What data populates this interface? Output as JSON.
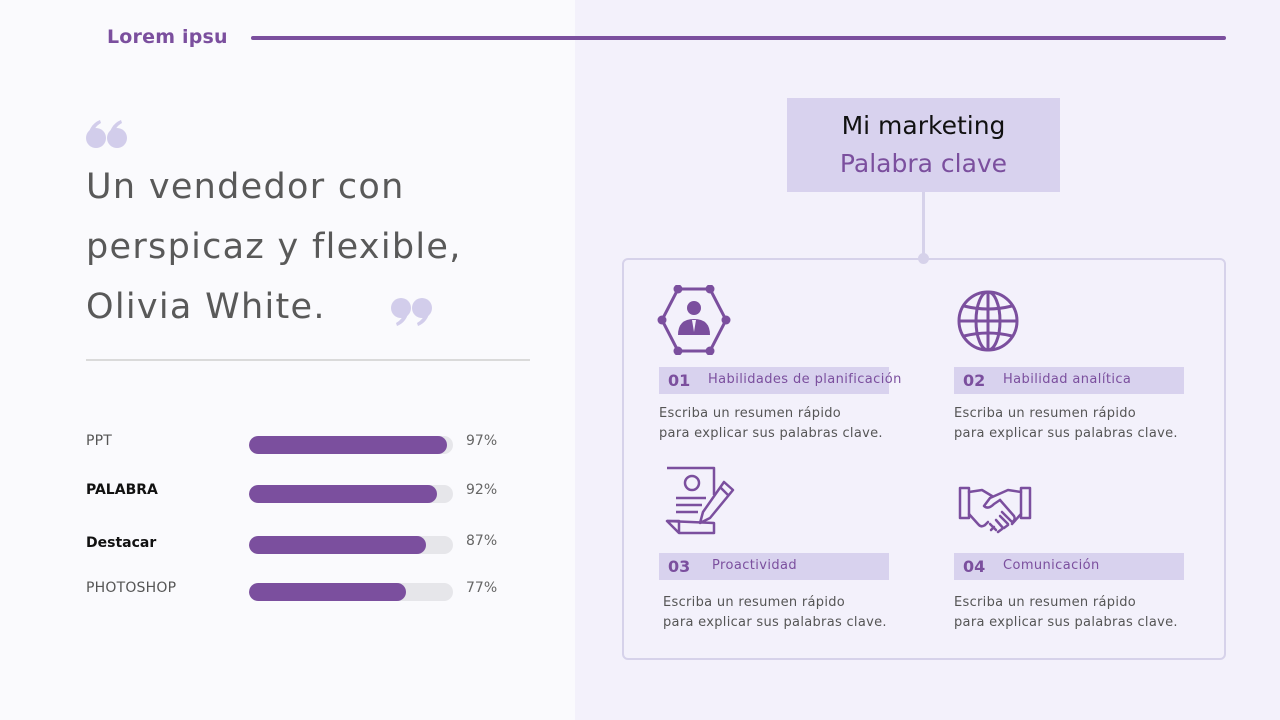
{
  "header": {
    "brand": "Lorem ipsu"
  },
  "quote": {
    "lines": [
      "Un vendedor con",
      "perspicaz y flexible,",
      "Olivia White."
    ]
  },
  "skills": [
    {
      "label": "PPT",
      "value": 97,
      "pct_text": "97%"
    },
    {
      "label": "PALABRA",
      "value": 92,
      "pct_text": "92%"
    },
    {
      "label": "Destacar",
      "value": 87,
      "pct_text": "87%"
    },
    {
      "label": "PHOTOSHOP",
      "value": 77,
      "pct_text": "77%"
    }
  ],
  "keyword_box": {
    "title": "Mi marketing",
    "subtitle": "Palabra clave"
  },
  "features": [
    {
      "num": "01",
      "title": "Habilidades de planificación",
      "desc": [
        "Escriba un resumen rápido",
        "para explicar sus palabras clave."
      ],
      "icon": "user-network-icon"
    },
    {
      "num": "02",
      "title": "Habilidad analítica",
      "desc": [
        "Escriba un resumen rápido",
        "para explicar sus palabras clave."
      ],
      "icon": "globe-icon"
    },
    {
      "num": "03",
      "title": "Proactividad",
      "desc": [
        "Escriba un resumen rápido",
        "para explicar sus palabras clave."
      ],
      "icon": "resume-document-icon"
    },
    {
      "num": "04",
      "title": "Comunicación",
      "desc": [
        "Escriba un resumen rápido",
        "para explicar sus palabras clave."
      ],
      "icon": "handshake-icon"
    }
  ],
  "colors": {
    "accent": "#7b4f9e",
    "band": "#d8d2ee",
    "panel": "#f3f1fb",
    "quote_marks": "#d2cdeb"
  }
}
